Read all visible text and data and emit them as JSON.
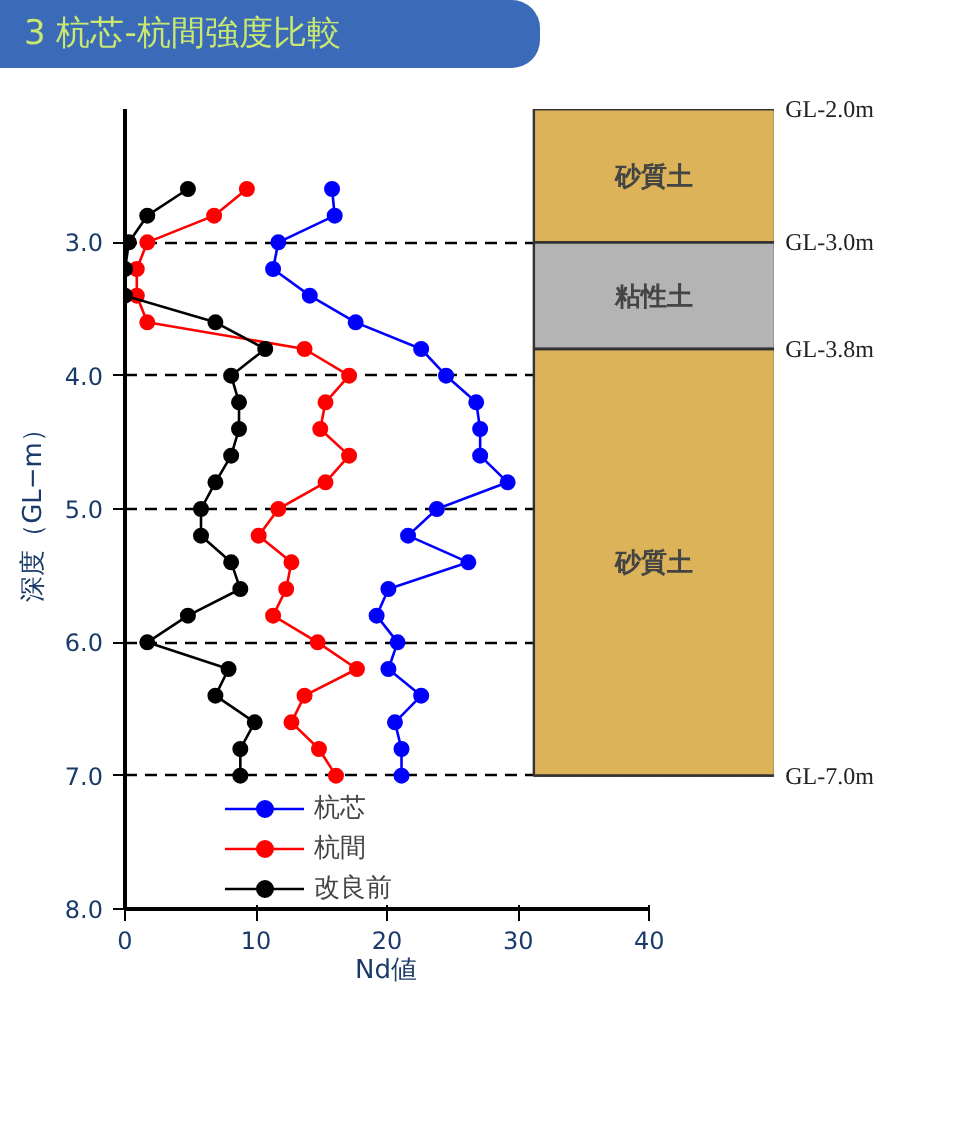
{
  "chart_data": {
    "type": "line",
    "title": "3 杭芯-杭間強度比較",
    "xlabel": "Nd値",
    "ylabel": "深度（GL−m）",
    "x": [
      2.6,
      2.8,
      3.0,
      3.2,
      3.4,
      3.6,
      3.8,
      4.0,
      4.2,
      4.4,
      4.6,
      4.8,
      5.0,
      5.2,
      5.4,
      5.6,
      5.8,
      6.0,
      6.2,
      6.4,
      6.6,
      6.8,
      7.0
    ],
    "series": [
      {
        "name": "杭芯",
        "color": "#0000ff",
        "values": [
          15.8,
          16.0,
          11.7,
          11.3,
          14.1,
          17.6,
          22.6,
          24.5,
          26.8,
          27.1,
          27.1,
          29.2,
          23.8,
          21.6,
          26.2,
          20.1,
          19.2,
          20.8,
          20.1,
          22.6,
          20.6,
          21.1,
          21.1
        ]
      },
      {
        "name": "杭間",
        "color": "#ff0000",
        "values": [
          9.3,
          6.8,
          1.7,
          0.9,
          0.9,
          1.7,
          13.7,
          17.1,
          15.3,
          14.9,
          17.1,
          15.3,
          11.7,
          10.2,
          12.7,
          12.3,
          11.3,
          14.7,
          17.7,
          13.7,
          12.7,
          14.8,
          16.1
        ]
      },
      {
        "name": "改良前",
        "color": "#000000",
        "values": [
          4.8,
          1.7,
          0.3,
          0.0,
          0.0,
          6.9,
          10.7,
          8.1,
          8.7,
          8.7,
          8.1,
          6.9,
          5.8,
          5.8,
          8.1,
          8.8,
          4.8,
          1.7,
          7.9,
          6.9,
          9.9,
          8.8,
          8.8
        ]
      }
    ],
    "orientation": "horizontal",
    "xlim": [
      0,
      40
    ],
    "xticks": [
      0,
      10,
      20,
      30,
      40
    ],
    "ylim": [
      8.0,
      2.0
    ],
    "yticks": [
      {
        "value": 3,
        "label": "3.0"
      },
      {
        "value": 4,
        "label": "4.0"
      },
      {
        "value": 5,
        "label": "5.0"
      },
      {
        "value": 6,
        "label": "6.0"
      },
      {
        "value": 7,
        "label": "7.0"
      },
      {
        "value": 8,
        "label": "8.0"
      }
    ],
    "grid": "y",
    "marker": "circle",
    "line_style": "solid",
    "legend": "bottom",
    "bands": [
      {
        "axis": "y",
        "from": 2.0,
        "to": 3.0,
        "label": "砂質土",
        "color": "#ddb35a"
      },
      {
        "axis": "y",
        "from": 3.0,
        "to": 3.8,
        "label": "粘性土",
        "color": "#b4b4b4"
      },
      {
        "axis": "y",
        "from": 3.8,
        "to": 7.0,
        "label": "砂質土",
        "color": "#ddb35a"
      }
    ],
    "ref_lines": [
      {
        "axis": "y",
        "value": 2.0,
        "label": "GL-2.0m"
      },
      {
        "axis": "y",
        "value": 3.0,
        "label": "GL-3.0m"
      },
      {
        "axis": "y",
        "value": 3.8,
        "label": "GL-3.8m"
      },
      {
        "axis": "y",
        "value": 7.0,
        "label": "GL-7.0m"
      }
    ]
  }
}
